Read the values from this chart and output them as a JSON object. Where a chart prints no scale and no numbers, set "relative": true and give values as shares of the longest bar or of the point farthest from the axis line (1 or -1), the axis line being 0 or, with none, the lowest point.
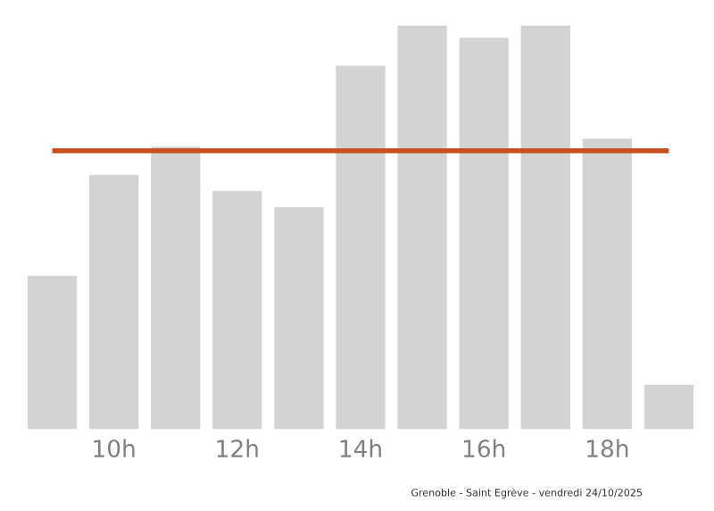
{
  "chart_data": {
    "type": "bar",
    "relative": true,
    "categories": [
      null,
      "10h",
      null,
      "12h",
      null,
      "14h",
      null,
      "16h",
      null,
      "18h",
      null
    ],
    "values": [
      0.38,
      0.63,
      0.7,
      0.59,
      0.55,
      0.9,
      1.0,
      0.97,
      1.0,
      0.72,
      0.11
    ],
    "color": "#d3d3d3",
    "ref_lines": [
      {
        "axis": "y",
        "value": 0.69,
        "color": "#c8501e",
        "line_style": "solid"
      }
    ],
    "grid": false,
    "legend": false,
    "annotations": [
      "Grenoble - Saint Egrève - vendredi 24/10/2025"
    ]
  }
}
